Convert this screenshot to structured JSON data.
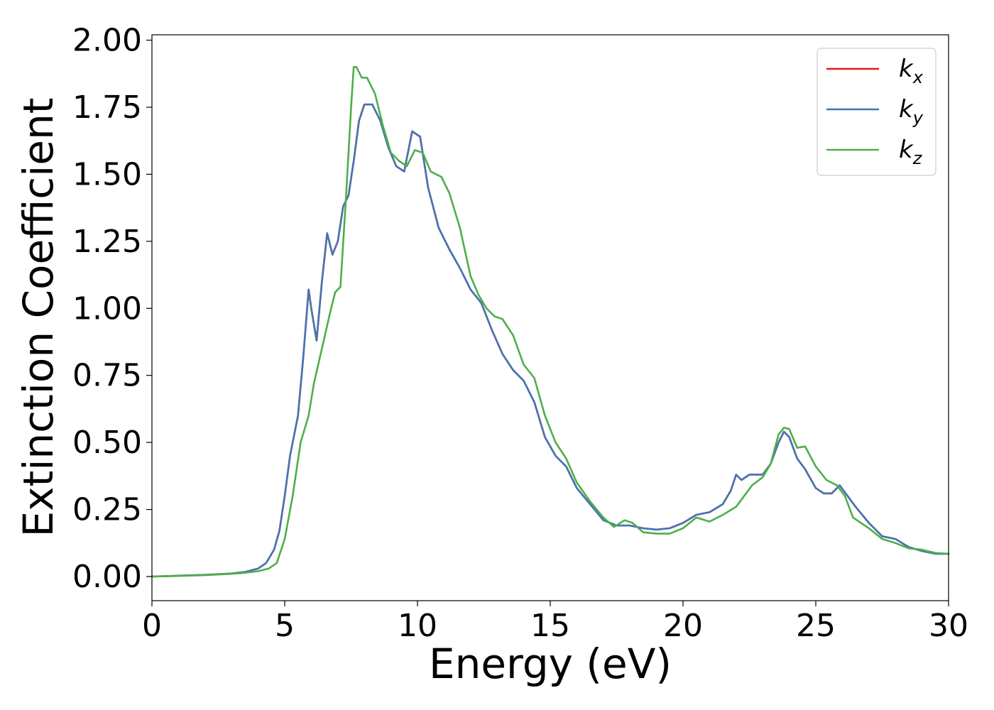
{
  "chart_data": {
    "type": "line",
    "xlabel": "Energy (eV)",
    "ylabel": "Extinction Coefficient",
    "xlim": [
      0,
      30
    ],
    "ylim": [
      -0.09,
      2.02
    ],
    "xticks": [
      0,
      5,
      10,
      15,
      20,
      25,
      30
    ],
    "xtick_labels": [
      "0",
      "5",
      "10",
      "15",
      "20",
      "25",
      "30"
    ],
    "yticks": [
      0,
      0.25,
      0.5,
      0.75,
      1.0,
      1.25,
      1.5,
      1.75,
      2.0
    ],
    "ytick_labels": [
      "0.00",
      "0.25",
      "0.50",
      "0.75",
      "1.00",
      "1.25",
      "1.50",
      "1.75",
      "2.00"
    ],
    "grid": false,
    "legend_position": "top-right",
    "series": [
      {
        "name": "kx",
        "label_base": "k",
        "label_sub": "x",
        "color": "#e41a1c",
        "points": [
          [
            0,
            0.0
          ],
          [
            1,
            0.003
          ],
          [
            2,
            0.006
          ],
          [
            3,
            0.011
          ],
          [
            3.5,
            0.017
          ],
          [
            4,
            0.03
          ],
          [
            4.3,
            0.05
          ],
          [
            4.6,
            0.1
          ],
          [
            4.8,
            0.17
          ],
          [
            5,
            0.3
          ],
          [
            5.2,
            0.45
          ],
          [
            5.5,
            0.6
          ],
          [
            5.7,
            0.82
          ],
          [
            5.9,
            1.07
          ],
          [
            6.0,
            1.0
          ],
          [
            6.2,
            0.88
          ],
          [
            6.4,
            1.1
          ],
          [
            6.6,
            1.28
          ],
          [
            6.8,
            1.2
          ],
          [
            7.0,
            1.25
          ],
          [
            7.2,
            1.38
          ],
          [
            7.4,
            1.42
          ],
          [
            7.6,
            1.55
          ],
          [
            7.8,
            1.7
          ],
          [
            8.0,
            1.76
          ],
          [
            8.3,
            1.76
          ],
          [
            8.6,
            1.7
          ],
          [
            8.9,
            1.6
          ],
          [
            9.2,
            1.53
          ],
          [
            9.5,
            1.51
          ],
          [
            9.8,
            1.66
          ],
          [
            10.1,
            1.64
          ],
          [
            10.4,
            1.45
          ],
          [
            10.8,
            1.3
          ],
          [
            11.2,
            1.22
          ],
          [
            11.6,
            1.15
          ],
          [
            12.0,
            1.07
          ],
          [
            12.4,
            1.02
          ],
          [
            12.8,
            0.92
          ],
          [
            13.2,
            0.83
          ],
          [
            13.6,
            0.77
          ],
          [
            14.0,
            0.73
          ],
          [
            14.4,
            0.65
          ],
          [
            14.8,
            0.52
          ],
          [
            15.2,
            0.45
          ],
          [
            15.6,
            0.41
          ],
          [
            16.0,
            0.33
          ],
          [
            16.5,
            0.27
          ],
          [
            17.0,
            0.21
          ],
          [
            17.5,
            0.19
          ],
          [
            18.0,
            0.19
          ],
          [
            18.5,
            0.18
          ],
          [
            19.0,
            0.175
          ],
          [
            19.5,
            0.18
          ],
          [
            20.0,
            0.2
          ],
          [
            20.5,
            0.23
          ],
          [
            21.0,
            0.24
          ],
          [
            21.5,
            0.27
          ],
          [
            21.8,
            0.32
          ],
          [
            22.0,
            0.38
          ],
          [
            22.2,
            0.36
          ],
          [
            22.5,
            0.38
          ],
          [
            23.0,
            0.38
          ],
          [
            23.3,
            0.42
          ],
          [
            23.6,
            0.5
          ],
          [
            23.8,
            0.54
          ],
          [
            24.0,
            0.52
          ],
          [
            24.3,
            0.44
          ],
          [
            24.6,
            0.4
          ],
          [
            25.0,
            0.33
          ],
          [
            25.3,
            0.31
          ],
          [
            25.6,
            0.31
          ],
          [
            25.9,
            0.34
          ],
          [
            26.2,
            0.3
          ],
          [
            26.5,
            0.26
          ],
          [
            27.0,
            0.2
          ],
          [
            27.5,
            0.15
          ],
          [
            28.0,
            0.14
          ],
          [
            28.5,
            0.11
          ],
          [
            29.0,
            0.095
          ],
          [
            29.5,
            0.085
          ],
          [
            30.0,
            0.085
          ]
        ]
      },
      {
        "name": "ky",
        "label_base": "k",
        "label_sub": "y",
        "color": "#4575b4",
        "points": [
          [
            0,
            0.0
          ],
          [
            1,
            0.003
          ],
          [
            2,
            0.006
          ],
          [
            3,
            0.011
          ],
          [
            3.5,
            0.017
          ],
          [
            4,
            0.03
          ],
          [
            4.3,
            0.05
          ],
          [
            4.6,
            0.1
          ],
          [
            4.8,
            0.17
          ],
          [
            5,
            0.3
          ],
          [
            5.2,
            0.45
          ],
          [
            5.5,
            0.6
          ],
          [
            5.7,
            0.82
          ],
          [
            5.9,
            1.07
          ],
          [
            6.0,
            1.0
          ],
          [
            6.2,
            0.88
          ],
          [
            6.4,
            1.1
          ],
          [
            6.6,
            1.28
          ],
          [
            6.8,
            1.2
          ],
          [
            7.0,
            1.25
          ],
          [
            7.2,
            1.38
          ],
          [
            7.4,
            1.42
          ],
          [
            7.6,
            1.55
          ],
          [
            7.8,
            1.7
          ],
          [
            8.0,
            1.76
          ],
          [
            8.3,
            1.76
          ],
          [
            8.6,
            1.7
          ],
          [
            8.9,
            1.6
          ],
          [
            9.2,
            1.53
          ],
          [
            9.5,
            1.51
          ],
          [
            9.8,
            1.66
          ],
          [
            10.1,
            1.64
          ],
          [
            10.4,
            1.45
          ],
          [
            10.8,
            1.3
          ],
          [
            11.2,
            1.22
          ],
          [
            11.6,
            1.15
          ],
          [
            12.0,
            1.07
          ],
          [
            12.4,
            1.02
          ],
          [
            12.8,
            0.92
          ],
          [
            13.2,
            0.83
          ],
          [
            13.6,
            0.77
          ],
          [
            14.0,
            0.73
          ],
          [
            14.4,
            0.65
          ],
          [
            14.8,
            0.52
          ],
          [
            15.2,
            0.45
          ],
          [
            15.6,
            0.41
          ],
          [
            16.0,
            0.33
          ],
          [
            16.5,
            0.27
          ],
          [
            17.0,
            0.21
          ],
          [
            17.5,
            0.19
          ],
          [
            18.0,
            0.19
          ],
          [
            18.5,
            0.18
          ],
          [
            19.0,
            0.175
          ],
          [
            19.5,
            0.18
          ],
          [
            20.0,
            0.2
          ],
          [
            20.5,
            0.23
          ],
          [
            21.0,
            0.24
          ],
          [
            21.5,
            0.27
          ],
          [
            21.8,
            0.32
          ],
          [
            22.0,
            0.38
          ],
          [
            22.2,
            0.36
          ],
          [
            22.5,
            0.38
          ],
          [
            23.0,
            0.38
          ],
          [
            23.3,
            0.42
          ],
          [
            23.6,
            0.5
          ],
          [
            23.8,
            0.54
          ],
          [
            24.0,
            0.52
          ],
          [
            24.3,
            0.44
          ],
          [
            24.6,
            0.4
          ],
          [
            25.0,
            0.33
          ],
          [
            25.3,
            0.31
          ],
          [
            25.6,
            0.31
          ],
          [
            25.9,
            0.34
          ],
          [
            26.2,
            0.3
          ],
          [
            26.5,
            0.26
          ],
          [
            27.0,
            0.2
          ],
          [
            27.5,
            0.15
          ],
          [
            28.0,
            0.14
          ],
          [
            28.5,
            0.11
          ],
          [
            29.0,
            0.095
          ],
          [
            29.5,
            0.085
          ],
          [
            30.0,
            0.085
          ]
        ]
      },
      {
        "name": "kz",
        "label_base": "k",
        "label_sub": "z",
        "color": "#4daf4a",
        "points": [
          [
            0,
            0.0
          ],
          [
            1,
            0.002
          ],
          [
            2,
            0.005
          ],
          [
            3,
            0.01
          ],
          [
            3.5,
            0.014
          ],
          [
            4,
            0.02
          ],
          [
            4.4,
            0.03
          ],
          [
            4.7,
            0.05
          ],
          [
            5.0,
            0.14
          ],
          [
            5.3,
            0.3
          ],
          [
            5.6,
            0.5
          ],
          [
            5.9,
            0.6
          ],
          [
            6.1,
            0.72
          ],
          [
            6.4,
            0.85
          ],
          [
            6.7,
            0.98
          ],
          [
            6.9,
            1.06
          ],
          [
            7.1,
            1.08
          ],
          [
            7.3,
            1.4
          ],
          [
            7.5,
            1.75
          ],
          [
            7.6,
            1.9
          ],
          [
            7.7,
            1.9
          ],
          [
            7.9,
            1.86
          ],
          [
            8.1,
            1.86
          ],
          [
            8.4,
            1.8
          ],
          [
            8.7,
            1.68
          ],
          [
            9.0,
            1.58
          ],
          [
            9.3,
            1.55
          ],
          [
            9.6,
            1.53
          ],
          [
            9.9,
            1.59
          ],
          [
            10.2,
            1.58
          ],
          [
            10.5,
            1.51
          ],
          [
            10.9,
            1.49
          ],
          [
            11.2,
            1.43
          ],
          [
            11.6,
            1.3
          ],
          [
            12.0,
            1.12
          ],
          [
            12.3,
            1.05
          ],
          [
            12.6,
            1.0
          ],
          [
            12.9,
            0.97
          ],
          [
            13.2,
            0.96
          ],
          [
            13.6,
            0.9
          ],
          [
            14.0,
            0.79
          ],
          [
            14.4,
            0.74
          ],
          [
            14.8,
            0.6
          ],
          [
            15.2,
            0.5
          ],
          [
            15.6,
            0.44
          ],
          [
            16.0,
            0.35
          ],
          [
            16.5,
            0.28
          ],
          [
            17.0,
            0.22
          ],
          [
            17.4,
            0.185
          ],
          [
            17.8,
            0.21
          ],
          [
            18.1,
            0.2
          ],
          [
            18.5,
            0.165
          ],
          [
            19.0,
            0.16
          ],
          [
            19.5,
            0.16
          ],
          [
            20.0,
            0.18
          ],
          [
            20.5,
            0.22
          ],
          [
            21.0,
            0.205
          ],
          [
            21.5,
            0.23
          ],
          [
            22.0,
            0.26
          ],
          [
            22.3,
            0.3
          ],
          [
            22.6,
            0.34
          ],
          [
            23.0,
            0.37
          ],
          [
            23.3,
            0.42
          ],
          [
            23.6,
            0.53
          ],
          [
            23.8,
            0.555
          ],
          [
            24.0,
            0.55
          ],
          [
            24.3,
            0.48
          ],
          [
            24.6,
            0.485
          ],
          [
            25.0,
            0.41
          ],
          [
            25.4,
            0.36
          ],
          [
            25.8,
            0.34
          ],
          [
            26.1,
            0.3
          ],
          [
            26.4,
            0.22
          ],
          [
            27.0,
            0.18
          ],
          [
            27.5,
            0.14
          ],
          [
            28.0,
            0.125
          ],
          [
            28.5,
            0.105
          ],
          [
            29.0,
            0.1
          ],
          [
            29.5,
            0.088
          ],
          [
            30.0,
            0.085
          ]
        ]
      }
    ]
  }
}
